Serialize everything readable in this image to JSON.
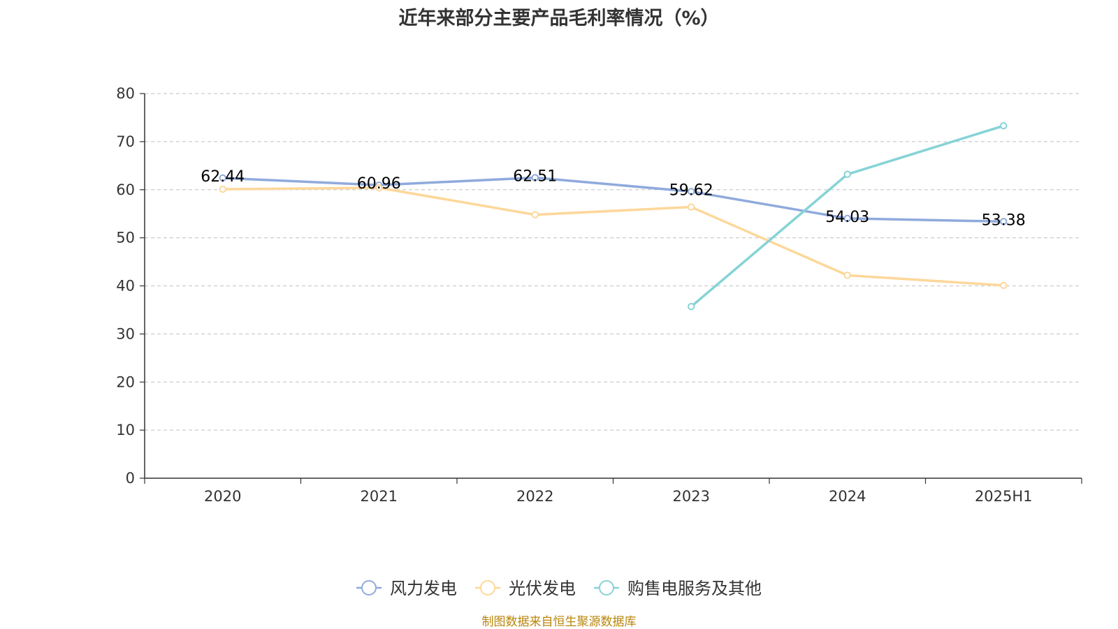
{
  "chart_data": {
    "type": "line",
    "title": "近年来部分主要产品毛利率情况（%）",
    "categories": [
      "2020",
      "2021",
      "2022",
      "2023",
      "2024",
      "2025H1"
    ],
    "ylim": [
      0,
      80
    ],
    "yticks": [
      0,
      10,
      20,
      30,
      40,
      50,
      60,
      70,
      80
    ],
    "grid": true,
    "legend_position": "bottom",
    "series": [
      {
        "name": "风力发电",
        "color": "#8faadc",
        "values": [
          62.44,
          60.96,
          62.51,
          59.62,
          54.03,
          53.38
        ],
        "labels": [
          "62.44",
          "60.96",
          "62.51",
          "59.62",
          "54.03",
          "53.38"
        ]
      },
      {
        "name": "光伏发电",
        "color": "#fdd79a",
        "values": [
          60.1,
          60.4,
          54.8,
          56.4,
          42.2,
          40.1
        ],
        "labels": null
      },
      {
        "name": "购售电服务及其他",
        "color": "#86d3d6",
        "values": [
          null,
          null,
          null,
          35.7,
          63.2,
          73.3
        ],
        "labels": null
      }
    ],
    "source": "制图数据来自恒生聚源数据库"
  }
}
